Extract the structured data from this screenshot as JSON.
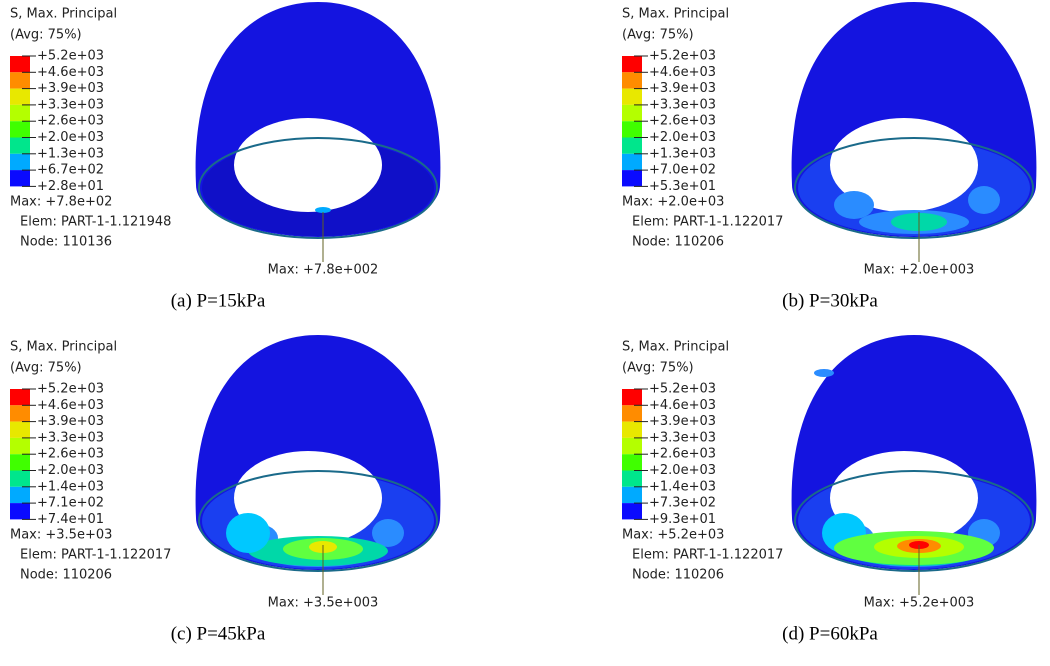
{
  "panels": [
    {
      "legend_title": "S, Max. Principal",
      "avg": "(Avg: 75%)",
      "legend_labels": [
        "+5.2e+03",
        "+4.6e+03",
        "+3.9e+03",
        "+3.3e+03",
        "+2.6e+03",
        "+2.0e+03",
        "+1.3e+03",
        "+6.7e+02",
        "+2.8e+01"
      ],
      "max": "Max: +7.8e+02",
      "elem": "Elem: PART-1-1.121948",
      "node": "Node: 110136",
      "max_annotation": "Max: +7.8e+002",
      "caption": "(a) P=15kPa"
    },
    {
      "legend_title": "S, Max. Principal",
      "avg": "(Avg: 75%)",
      "legend_labels": [
        "+5.2e+03",
        "+4.6e+03",
        "+3.9e+03",
        "+3.3e+03",
        "+2.6e+03",
        "+2.0e+03",
        "+1.3e+03",
        "+7.0e+02",
        "+5.3e+01"
      ],
      "max": "Max: +2.0e+03",
      "elem": "Elem: PART-1-1.122017",
      "node": "Node: 110206",
      "max_annotation": "Max: +2.0e+003",
      "caption": "(b) P=30kPa"
    },
    {
      "legend_title": "S, Max. Principal",
      "avg": "(Avg: 75%)",
      "legend_labels": [
        "+5.2e+03",
        "+4.6e+03",
        "+3.9e+03",
        "+3.3e+03",
        "+2.6e+03",
        "+2.0e+03",
        "+1.4e+03",
        "+7.1e+02",
        "+7.4e+01"
      ],
      "max": "Max: +3.5e+03",
      "elem": "Elem: PART-1-1.122017",
      "node": "Node: 110206",
      "max_annotation": "Max: +3.5e+003",
      "caption": "(c) P=45kPa"
    },
    {
      "legend_title": "S, Max. Principal",
      "avg": "(Avg: 75%)",
      "legend_labels": [
        "+5.2e+03",
        "+4.6e+03",
        "+3.9e+03",
        "+3.3e+03",
        "+2.6e+03",
        "+2.0e+03",
        "+1.4e+03",
        "+7.3e+02",
        "+9.3e+01"
      ],
      "max": "Max: +5.2e+03",
      "elem": "Elem: PART-1-1.122017",
      "node": "Node: 110206",
      "max_annotation": "Max: +5.2e+003",
      "caption": "(d) P=60kPa"
    }
  ]
}
